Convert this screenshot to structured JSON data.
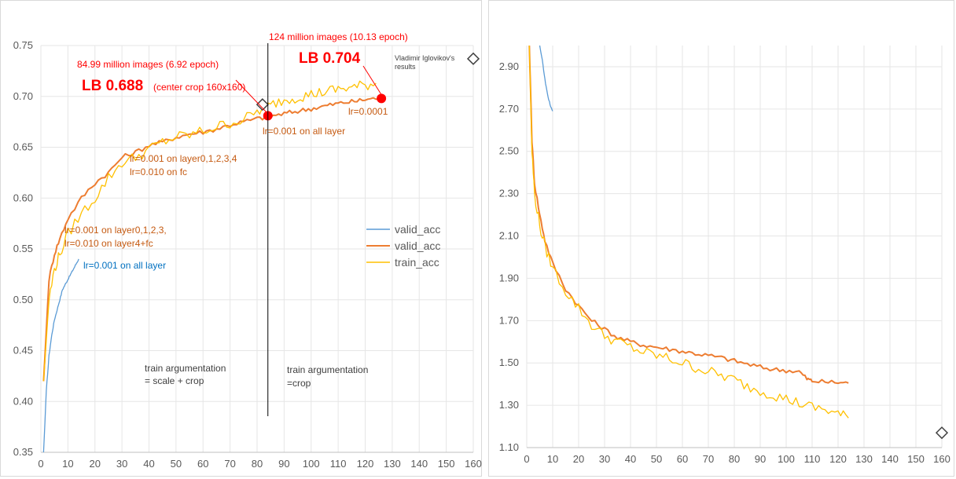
{
  "charts": {
    "left": {
      "type": "line",
      "xlim": [
        0,
        160
      ],
      "ylim": [
        0.35,
        0.75
      ],
      "x_ticks": [
        0,
        10,
        20,
        30,
        40,
        50,
        60,
        70,
        80,
        90,
        100,
        110,
        120,
        130,
        140,
        150,
        160
      ],
      "y_ticks": [
        0.35,
        0.4,
        0.45,
        0.5,
        0.55,
        0.6,
        0.65,
        0.7,
        0.75
      ],
      "grid": true,
      "legend_position": "right-middle",
      "legend": [
        {
          "label": "valid_acc",
          "color": "#5b9bd5"
        },
        {
          "label": "valid_acc",
          "color": "#ed7d31"
        },
        {
          "label": "train_acc",
          "color": "#ffc000"
        }
      ],
      "series": [
        {
          "name": "valid_acc",
          "color": "#5b9bd5",
          "x": [
            1,
            2,
            3,
            4,
            5,
            6,
            7,
            8,
            9,
            10,
            11,
            12,
            13,
            14
          ],
          "y": [
            0.35,
            0.41,
            0.445,
            0.465,
            0.48,
            0.49,
            0.5,
            0.51,
            0.515,
            0.52,
            0.525,
            0.53,
            0.535,
            0.54
          ]
        },
        {
          "name": "valid_acc",
          "color": "#ed7d31",
          "x": [
            1,
            3,
            5,
            7,
            10,
            15,
            20,
            25,
            30,
            35,
            40,
            45,
            50,
            55,
            60,
            65,
            70,
            75,
            80,
            84,
            88,
            92,
            96,
            100,
            104,
            108,
            112,
            116,
            120,
            124,
            127
          ],
          "y": [
            0.42,
            0.52,
            0.545,
            0.56,
            0.58,
            0.6,
            0.615,
            0.625,
            0.64,
            0.645,
            0.652,
            0.655,
            0.66,
            0.663,
            0.665,
            0.668,
            0.672,
            0.675,
            0.678,
            0.68,
            0.682,
            0.684,
            0.686,
            0.688,
            0.69,
            0.692,
            0.694,
            0.695,
            0.697,
            0.698,
            0.699
          ]
        },
        {
          "name": "train_acc",
          "color": "#ffc000",
          "x": [
            1,
            3,
            5,
            7,
            10,
            15,
            20,
            25,
            30,
            35,
            40,
            45,
            50,
            55,
            60,
            65,
            70,
            75,
            80,
            84,
            88,
            92,
            96,
            100,
            104,
            108,
            112,
            116,
            120,
            124
          ],
          "y": [
            0.42,
            0.5,
            0.53,
            0.545,
            0.565,
            0.585,
            0.6,
            0.62,
            0.635,
            0.64,
            0.648,
            0.655,
            0.66,
            0.662,
            0.666,
            0.67,
            0.674,
            0.677,
            0.685,
            0.69,
            0.695,
            0.698,
            0.7,
            0.702,
            0.704,
            0.706,
            0.708,
            0.709,
            0.711,
            0.713
          ]
        }
      ],
      "markers": [
        {
          "kind": "diamond",
          "x": 82,
          "y": 0.692
        },
        {
          "kind": "diamond",
          "x": 160,
          "y": 0.737
        },
        {
          "kind": "red-dot",
          "x": 84,
          "y": 0.681
        },
        {
          "kind": "red-dot",
          "x": 126,
          "y": 0.698
        }
      ],
      "vline_x": 84,
      "annotations": {
        "top_label": "124 million images (10.13 epoch)",
        "lb_0704": "LB 0.704",
        "vladimir_line1": "Vladimir Iglovikov's",
        "vladimir_line2": "results",
        "mid_label": "84.99 million images (6.92 epoch)",
        "lb_0688": "LB 0.688",
        "center_crop": "(center crop 160x160)",
        "lr_00001": "lr=0.0001",
        "lr_all_right": "lr=0.001 on all layer",
        "lr_l01234_a": "lr=0.001 on layer0,1,2,3,4",
        "lr_l01234_b": "lr=0.010 on fc",
        "lr_l0123_a": "lr=0.001 on layer0,1,2,3,",
        "lr_l0123_b": "lr=0.010 on layer4+fc",
        "lr_all_left": "lr=0.001 on all layer",
        "aug_left_a": "train argumentation",
        "aug_left_b": "= scale + crop",
        "aug_right_a": "train argumentation",
        "aug_right_b": "=crop"
      }
    },
    "right": {
      "type": "line",
      "xlim": [
        0,
        160
      ],
      "ylim": [
        1.1,
        3.0
      ],
      "x_ticks": [
        0,
        10,
        20,
        30,
        40,
        50,
        60,
        70,
        80,
        90,
        100,
        110,
        120,
        130,
        140,
        150,
        160
      ],
      "y_ticks": [
        1.1,
        1.3,
        1.5,
        1.7,
        1.9,
        2.1,
        2.3,
        2.5,
        2.7,
        2.9
      ],
      "grid": true,
      "series": [
        {
          "name": "blue",
          "color": "#5b9bd5",
          "x": [
            5,
            6,
            7,
            8,
            9,
            10
          ],
          "y": [
            3.0,
            2.93,
            2.84,
            2.77,
            2.72,
            2.69
          ]
        },
        {
          "name": "orange",
          "color": "#ed7d31",
          "x": [
            1,
            2,
            3,
            5,
            7,
            10,
            15,
            20,
            25,
            30,
            35,
            40,
            45,
            50,
            55,
            60,
            65,
            70,
            75,
            80,
            85,
            90,
            95,
            100,
            105,
            108,
            110,
            115,
            120,
            124
          ],
          "y": [
            3.0,
            2.55,
            2.35,
            2.2,
            2.08,
            1.97,
            1.85,
            1.77,
            1.7,
            1.66,
            1.62,
            1.6,
            1.585,
            1.575,
            1.565,
            1.555,
            1.545,
            1.535,
            1.525,
            1.51,
            1.495,
            1.48,
            1.47,
            1.465,
            1.46,
            1.425,
            1.415,
            1.41,
            1.408,
            1.405
          ]
        },
        {
          "name": "yellow",
          "color": "#ffc000",
          "x": [
            1,
            2,
            3,
            5,
            7,
            10,
            15,
            20,
            25,
            30,
            35,
            40,
            45,
            50,
            55,
            60,
            65,
            70,
            75,
            80,
            85,
            90,
            95,
            100,
            105,
            110,
            115,
            120,
            124
          ],
          "y": [
            3.0,
            2.5,
            2.3,
            2.15,
            2.05,
            1.95,
            1.84,
            1.76,
            1.68,
            1.63,
            1.6,
            1.575,
            1.55,
            1.535,
            1.52,
            1.5,
            1.48,
            1.46,
            1.44,
            1.42,
            1.39,
            1.37,
            1.35,
            1.33,
            1.31,
            1.29,
            1.28,
            1.26,
            1.24
          ]
        }
      ],
      "markers": [
        {
          "kind": "diamond",
          "x": 160,
          "y": 1.17
        }
      ]
    }
  }
}
